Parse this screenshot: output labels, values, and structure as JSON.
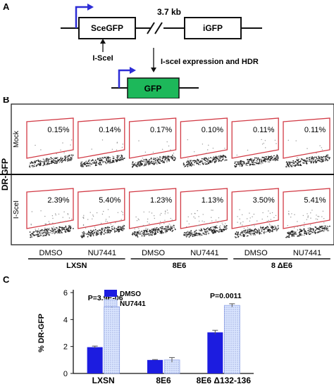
{
  "panels": {
    "a": "A",
    "b": "B",
    "c": "C"
  },
  "construct": {
    "distance": "3.7 kb",
    "sce_gene": "SceGFP",
    "igfp_gene": "iGFP",
    "site": "I-SceI",
    "process": "I-sceI expression and HDR",
    "product": "GFP",
    "colors": {
      "gfp_box": "#1db85a",
      "promoter": "#2d2dd6"
    }
  },
  "flow": {
    "y_title": "DR-GFP",
    "rows": [
      {
        "label": "Mock",
        "values": [
          "0.15%",
          "0.14%",
          "0.17%",
          "0.10%",
          "0.11%",
          "0.11%"
        ]
      },
      {
        "label": "I-SceI",
        "values": [
          "2.39%",
          "5.40%",
          "1.23%",
          "1.13%",
          "3.50%",
          "5.41%"
        ]
      }
    ],
    "treatments": [
      "DMSO",
      "NU7441",
      "DMSO",
      "NU7441",
      "DMSO",
      "NU7441"
    ],
    "groups": [
      "LXSN",
      "8E6",
      "8 ΔE6"
    ],
    "gate_color": "#d23a45"
  },
  "chart_data": {
    "type": "bar",
    "categories": [
      "LXSN",
      "8E6",
      "8E6 Δ132-136"
    ],
    "series": [
      {
        "name": "DMSO",
        "values": [
          1.95,
          1.0,
          3.05
        ],
        "errors": [
          0.08,
          0.03,
          0.15
        ],
        "color": "#1c1ce0"
      },
      {
        "name": "NU7441",
        "values": [
          4.95,
          1.0,
          5.05
        ],
        "errors": [
          0.05,
          0.18,
          0.12
        ],
        "color": "#dbe6ff"
      }
    ],
    "ylabel": "% DR-GFP",
    "ylim": [
      0,
      6
    ],
    "yticks": [
      0,
      2,
      4,
      6
    ],
    "legend_position": "top-left",
    "annotations": [
      {
        "category": 0,
        "text": "P=3.9E-06"
      },
      {
        "category": 2,
        "text": "P=0.0011"
      }
    ]
  }
}
